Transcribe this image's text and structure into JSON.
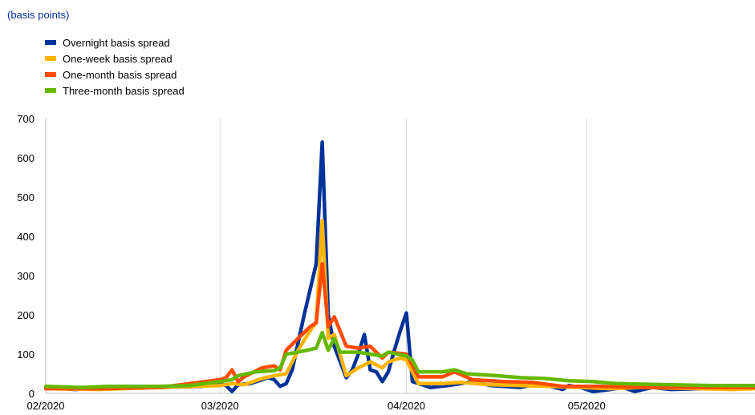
{
  "units_label": "(basis points)",
  "chart_data": {
    "type": "line",
    "ylim": [
      0,
      700
    ],
    "yticks": [
      0,
      100,
      200,
      300,
      400,
      500,
      600,
      700
    ],
    "xlim": [
      "2020-02-01",
      "2020-05-29"
    ],
    "xticks": [
      {
        "date": "2020-02-01",
        "label": "02/2020"
      },
      {
        "date": "2020-03-01",
        "label": "03/2020"
      },
      {
        "date": "2020-04-01",
        "label": "04/2020"
      },
      {
        "date": "2020-05-01",
        "label": "05/2020"
      }
    ],
    "grid": "vertical",
    "legend": "top-left",
    "series": [
      {
        "name": "Overnight basis spread",
        "color": "#003299",
        "points": [
          [
            "2020-02-01",
            15
          ],
          [
            "2020-02-06",
            10
          ],
          [
            "2020-02-12",
            18
          ],
          [
            "2020-02-20",
            15
          ],
          [
            "2020-02-27",
            18
          ],
          [
            "2020-03-01",
            25
          ],
          [
            "2020-03-02",
            20
          ],
          [
            "2020-03-03",
            5
          ],
          [
            "2020-03-04",
            22
          ],
          [
            "2020-03-06",
            25
          ],
          [
            "2020-03-08",
            35
          ],
          [
            "2020-03-09",
            40
          ],
          [
            "2020-03-10",
            35
          ],
          [
            "2020-03-11",
            18
          ],
          [
            "2020-03-12",
            25
          ],
          [
            "2020-03-13",
            60
          ],
          [
            "2020-03-15",
            200
          ],
          [
            "2020-03-17",
            330
          ],
          [
            "2020-03-18",
            640
          ],
          [
            "2020-03-19",
            200
          ],
          [
            "2020-03-20",
            120
          ],
          [
            "2020-03-22",
            40
          ],
          [
            "2020-03-23",
            60
          ],
          [
            "2020-03-24",
            100
          ],
          [
            "2020-03-25",
            150
          ],
          [
            "2020-03-26",
            60
          ],
          [
            "2020-03-27",
            55
          ],
          [
            "2020-03-28",
            30
          ],
          [
            "2020-03-29",
            55
          ],
          [
            "2020-03-30",
            110
          ],
          [
            "2020-03-31",
            160
          ],
          [
            "2020-04-01",
            205
          ],
          [
            "2020-04-02",
            30
          ],
          [
            "2020-04-03",
            25
          ],
          [
            "2020-04-05",
            15
          ],
          [
            "2020-04-08",
            20
          ],
          [
            "2020-04-12",
            30
          ],
          [
            "2020-04-15",
            20
          ],
          [
            "2020-04-20",
            15
          ],
          [
            "2020-04-23",
            25
          ],
          [
            "2020-04-27",
            10
          ],
          [
            "2020-04-28",
            20
          ],
          [
            "2020-04-30",
            15
          ],
          [
            "2020-05-02",
            5
          ],
          [
            "2020-05-05",
            10
          ],
          [
            "2020-05-07",
            15
          ],
          [
            "2020-05-09",
            5
          ],
          [
            "2020-05-12",
            15
          ],
          [
            "2020-05-15",
            10
          ],
          [
            "2020-05-20",
            12
          ],
          [
            "2020-05-25",
            15
          ],
          [
            "2020-05-29",
            15
          ]
        ]
      },
      {
        "name": "One-week basis spread",
        "color": "#ffb400",
        "points": [
          [
            "2020-02-01",
            12
          ],
          [
            "2020-02-10",
            10
          ],
          [
            "2020-02-20",
            15
          ],
          [
            "2020-03-01",
            20
          ],
          [
            "2020-03-03",
            25
          ],
          [
            "2020-03-05",
            22
          ],
          [
            "2020-03-08",
            38
          ],
          [
            "2020-03-10",
            45
          ],
          [
            "2020-03-12",
            50
          ],
          [
            "2020-03-14",
            110
          ],
          [
            "2020-03-16",
            160
          ],
          [
            "2020-03-17",
            180
          ],
          [
            "2020-03-18",
            440
          ],
          [
            "2020-03-19",
            140
          ],
          [
            "2020-03-20",
            150
          ],
          [
            "2020-03-22",
            45
          ],
          [
            "2020-03-24",
            65
          ],
          [
            "2020-03-26",
            80
          ],
          [
            "2020-03-28",
            65
          ],
          [
            "2020-03-29",
            80
          ],
          [
            "2020-03-31",
            90
          ],
          [
            "2020-04-01",
            85
          ],
          [
            "2020-04-03",
            25
          ],
          [
            "2020-04-07",
            25
          ],
          [
            "2020-04-10",
            28
          ],
          [
            "2020-04-15",
            22
          ],
          [
            "2020-04-20",
            20
          ],
          [
            "2020-04-25",
            18
          ],
          [
            "2020-04-30",
            15
          ],
          [
            "2020-05-05",
            12
          ],
          [
            "2020-05-10",
            15
          ],
          [
            "2020-05-20",
            12
          ],
          [
            "2020-05-25",
            10
          ],
          [
            "2020-05-29",
            12
          ]
        ]
      },
      {
        "name": "One-month basis spread",
        "color": "#ff4b00",
        "points": [
          [
            "2020-02-01",
            12
          ],
          [
            "2020-02-10",
            12
          ],
          [
            "2020-02-20",
            15
          ],
          [
            "2020-03-01",
            35
          ],
          [
            "2020-03-02",
            40
          ],
          [
            "2020-03-03",
            60
          ],
          [
            "2020-03-04",
            30
          ],
          [
            "2020-03-05",
            42
          ],
          [
            "2020-03-08",
            65
          ],
          [
            "2020-03-10",
            70
          ],
          [
            "2020-03-11",
            60
          ],
          [
            "2020-03-12",
            110
          ],
          [
            "2020-03-14",
            140
          ],
          [
            "2020-03-16",
            170
          ],
          [
            "2020-03-17",
            180
          ],
          [
            "2020-03-18",
            330
          ],
          [
            "2020-03-19",
            170
          ],
          [
            "2020-03-20",
            195
          ],
          [
            "2020-03-22",
            120
          ],
          [
            "2020-03-24",
            115
          ],
          [
            "2020-03-26",
            120
          ],
          [
            "2020-03-28",
            90
          ],
          [
            "2020-03-29",
            105
          ],
          [
            "2020-04-01",
            100
          ],
          [
            "2020-04-03",
            42
          ],
          [
            "2020-04-07",
            42
          ],
          [
            "2020-04-09",
            55
          ],
          [
            "2020-04-12",
            35
          ],
          [
            "2020-04-17",
            30
          ],
          [
            "2020-04-22",
            28
          ],
          [
            "2020-04-27",
            18
          ],
          [
            "2020-05-03",
            18
          ],
          [
            "2020-05-10",
            15
          ],
          [
            "2020-05-20",
            15
          ],
          [
            "2020-05-29",
            15
          ]
        ]
      },
      {
        "name": "Three-month basis spread",
        "color": "#65b800",
        "points": [
          [
            "2020-02-01",
            18
          ],
          [
            "2020-02-07",
            15
          ],
          [
            "2020-02-12",
            18
          ],
          [
            "2020-02-20",
            18
          ],
          [
            "2020-02-25",
            20
          ],
          [
            "2020-03-01",
            30
          ],
          [
            "2020-03-03",
            35
          ],
          [
            "2020-03-04",
            45
          ],
          [
            "2020-03-07",
            55
          ],
          [
            "2020-03-10",
            58
          ],
          [
            "2020-03-11",
            65
          ],
          [
            "2020-03-12",
            100
          ],
          [
            "2020-03-14",
            105
          ],
          [
            "2020-03-17",
            115
          ],
          [
            "2020-03-18",
            155
          ],
          [
            "2020-03-19",
            110
          ],
          [
            "2020-03-20",
            140
          ],
          [
            "2020-03-21",
            105
          ],
          [
            "2020-03-24",
            105
          ],
          [
            "2020-03-26",
            100
          ],
          [
            "2020-03-28",
            95
          ],
          [
            "2020-03-29",
            105
          ],
          [
            "2020-04-01",
            95
          ],
          [
            "2020-04-02",
            85
          ],
          [
            "2020-04-03",
            55
          ],
          [
            "2020-04-07",
            55
          ],
          [
            "2020-04-09",
            60
          ],
          [
            "2020-04-11",
            50
          ],
          [
            "2020-04-16",
            45
          ],
          [
            "2020-04-20",
            40
          ],
          [
            "2020-04-24",
            38
          ],
          [
            "2020-04-28",
            32
          ],
          [
            "2020-05-02",
            30
          ],
          [
            "2020-05-06",
            25
          ],
          [
            "2020-05-15",
            22
          ],
          [
            "2020-05-22",
            20
          ],
          [
            "2020-05-29",
            20
          ]
        ]
      }
    ]
  }
}
